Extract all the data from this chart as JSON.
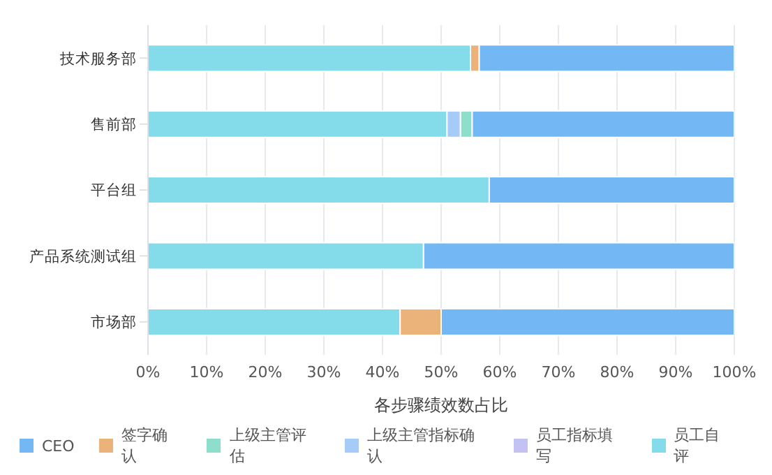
{
  "chart_data": {
    "type": "bar",
    "orientation": "horizontal",
    "stacked": true,
    "xlabel": "各步骤绩效数占比",
    "categories": [
      "技术服务部",
      "售前部",
      "平台组",
      "产品系统测试组",
      "市场部"
    ],
    "series": [
      {
        "name": "员工自评",
        "color": "#84dbea",
        "values": [
          55,
          51,
          58.2,
          47,
          43
        ]
      },
      {
        "name": "员工指标填写",
        "color": "#c4c2f2",
        "values": [
          0,
          0,
          0,
          0,
          0
        ]
      },
      {
        "name": "上级主管指标确认",
        "color": "#a5cbf8",
        "values": [
          0,
          2.3,
          0,
          0,
          0
        ]
      },
      {
        "name": "上级主管评估",
        "color": "#8ddecb",
        "values": [
          0,
          2,
          0,
          0,
          0
        ]
      },
      {
        "name": "签字确认",
        "color": "#ebb27a",
        "values": [
          1.5,
          0,
          0,
          0,
          7
        ]
      },
      {
        "name": "CEO",
        "color": "#73b8f5",
        "values": [
          43.5,
          44.7,
          41.8,
          53,
          50
        ]
      }
    ],
    "xlim": [
      0,
      100
    ],
    "xticks": [
      {
        "value": 0,
        "label": "0%"
      },
      {
        "value": 10,
        "label": "10%"
      },
      {
        "value": 20,
        "label": "20%"
      },
      {
        "value": 30,
        "label": "30%"
      },
      {
        "value": 40,
        "label": "40%"
      },
      {
        "value": 50,
        "label": "50%"
      },
      {
        "value": 60,
        "label": "60%"
      },
      {
        "value": 70,
        "label": "70%"
      },
      {
        "value": 80,
        "label": "80%"
      },
      {
        "value": 90,
        "label": "90%"
      },
      {
        "value": 100,
        "label": "100%"
      }
    ],
    "grid": "x",
    "legend": "bottom"
  }
}
